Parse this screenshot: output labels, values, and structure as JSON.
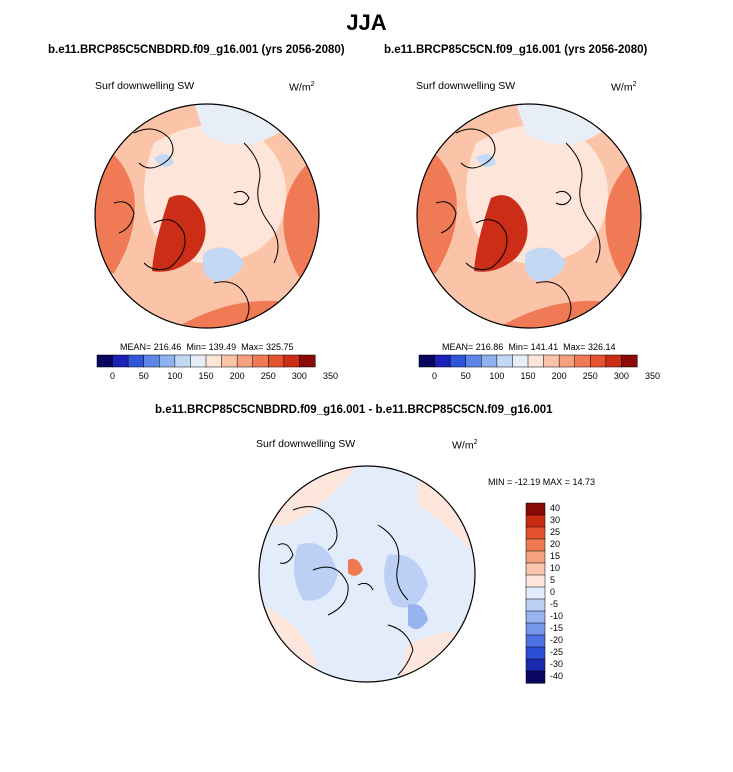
{
  "figure": {
    "title": "JJA"
  },
  "colors": {
    "abs_palette": [
      "#08065f",
      "#1b22b8",
      "#2f55d8",
      "#5e86e8",
      "#8fb2f0",
      "#c2d8f5",
      "#e8eef8",
      "#fde5d9",
      "#fbc3a8",
      "#f6a07e",
      "#ef7a55",
      "#e4532f",
      "#cc2d16",
      "#8a0a08"
    ],
    "diff_palette": [
      "#08065f",
      "#1929b0",
      "#2c4fd6",
      "#4f73e4",
      "#7596ea",
      "#98b4f0",
      "#bcd0f5",
      "#e3ecfa",
      "#fde6dc",
      "#fbc6ad",
      "#f6a27e",
      "#ef7a52",
      "#e4512d",
      "#c82a12",
      "#8a0a08"
    ],
    "land_coast": "#000000"
  },
  "chart_data": [
    {
      "type": "heatmap",
      "name": "left_panel",
      "projection": "north polar stereographic",
      "title": "b.e11.BRCP85C5CNBDRD.f09_g16.001 (yrs 2056-2080)",
      "variable": "Surf downwelling SW",
      "units": "W/m",
      "units_superscript": "2",
      "stats": {
        "mean_label": "MEAN=",
        "mean": "216.46",
        "min_label": "Min=",
        "min": "139.49",
        "max_label": "Max=",
        "max": "325.75"
      },
      "colorbar_orientation": "horizontal",
      "colorbar_ticks": [
        "0",
        "50",
        "100",
        "150",
        "200",
        "250",
        "300",
        "350"
      ]
    },
    {
      "type": "heatmap",
      "name": "right_panel",
      "projection": "north polar stereographic",
      "title": "b.e11.BRCP85C5CN.f09_g16.001 (yrs 2056-2080)",
      "variable": "Surf downwelling SW",
      "units": "W/m",
      "units_superscript": "2",
      "stats": {
        "mean_label": "MEAN=",
        "mean": "216.86",
        "min_label": "Min=",
        "min": "141.41",
        "max_label": "Max=",
        "max": "326.14"
      },
      "colorbar_orientation": "horizontal",
      "colorbar_ticks": [
        "0",
        "50",
        "100",
        "150",
        "200",
        "250",
        "300",
        "350"
      ]
    },
    {
      "type": "heatmap",
      "name": "difference_panel",
      "projection": "north polar stereographic",
      "title": "b.e11.BRCP85C5CNBDRD.f09_g16.001 - b.e11.BRCP85C5CN.f09_g16.001",
      "variable": "Surf downwelling SW",
      "units": "W/m",
      "units_superscript": "2",
      "stats_text": "MIN = -12.19 MAX =  14.73",
      "colorbar_orientation": "vertical",
      "colorbar_ticks": [
        "40",
        "30",
        "25",
        "20",
        "15",
        "10",
        "5",
        "0",
        "-5",
        "-10",
        "-15",
        "-20",
        "-25",
        "-30",
        "-40"
      ]
    }
  ]
}
